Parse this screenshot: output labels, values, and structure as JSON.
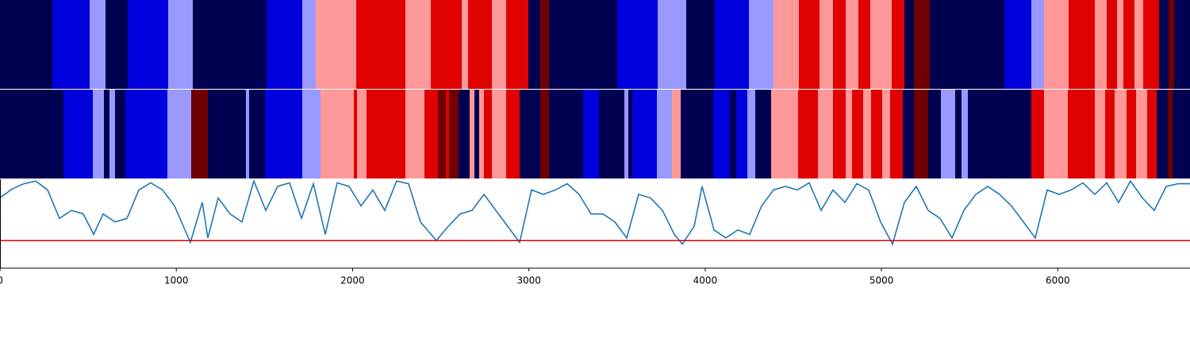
{
  "chart_data": [
    {
      "type": "strip",
      "xlim": [
        0,
        6750
      ],
      "segments": [
        {
          "start": 0,
          "end": 297,
          "color": "#000050"
        },
        {
          "start": 297,
          "end": 508,
          "color": "#0000dd"
        },
        {
          "start": 508,
          "end": 598,
          "color": "#9999ff"
        },
        {
          "start": 598,
          "end": 724,
          "color": "#000050"
        },
        {
          "start": 724,
          "end": 954,
          "color": "#0000dd"
        },
        {
          "start": 954,
          "end": 1093,
          "color": "#9999ff"
        },
        {
          "start": 1093,
          "end": 1512,
          "color": "#000050"
        },
        {
          "start": 1512,
          "end": 1714,
          "color": "#0000dd"
        },
        {
          "start": 1714,
          "end": 1791,
          "color": "#9999ff"
        },
        {
          "start": 1791,
          "end": 2020,
          "color": "#ff9999"
        },
        {
          "start": 2020,
          "end": 2300,
          "color": "#e00000"
        },
        {
          "start": 2300,
          "end": 2443,
          "color": "#ff9999"
        },
        {
          "start": 2443,
          "end": 2619,
          "color": "#e00000"
        },
        {
          "start": 2619,
          "end": 2655,
          "color": "#ff9999"
        },
        {
          "start": 2655,
          "end": 2790,
          "color": "#e00000"
        },
        {
          "start": 2790,
          "end": 2871,
          "color": "#ff9999"
        },
        {
          "start": 2871,
          "end": 2997,
          "color": "#e00000"
        },
        {
          "start": 2997,
          "end": 3064,
          "color": "#000050"
        },
        {
          "start": 3064,
          "end": 3114,
          "color": "#700000"
        },
        {
          "start": 3114,
          "end": 3501,
          "color": "#000050"
        },
        {
          "start": 3501,
          "end": 3730,
          "color": "#0000dd"
        },
        {
          "start": 3730,
          "end": 3892,
          "color": "#9999ff"
        },
        {
          "start": 3892,
          "end": 4054,
          "color": "#000050"
        },
        {
          "start": 4054,
          "end": 4248,
          "color": "#0000dd"
        },
        {
          "start": 4248,
          "end": 4387,
          "color": "#9999ff"
        },
        {
          "start": 4387,
          "end": 4531,
          "color": "#ff9999"
        },
        {
          "start": 4531,
          "end": 4648,
          "color": "#e00000"
        },
        {
          "start": 4648,
          "end": 4725,
          "color": "#ff9999"
        },
        {
          "start": 4725,
          "end": 4797,
          "color": "#e00000"
        },
        {
          "start": 4797,
          "end": 4869,
          "color": "#ff9999"
        },
        {
          "start": 4869,
          "end": 4936,
          "color": "#e00000"
        },
        {
          "start": 4936,
          "end": 5058,
          "color": "#ff9999"
        },
        {
          "start": 5058,
          "end": 5130,
          "color": "#e00000"
        },
        {
          "start": 5130,
          "end": 5184,
          "color": "#000050"
        },
        {
          "start": 5184,
          "end": 5274,
          "color": "#700000"
        },
        {
          "start": 5274,
          "end": 5697,
          "color": "#000050"
        },
        {
          "start": 5697,
          "end": 5850,
          "color": "#0000dd"
        },
        {
          "start": 5850,
          "end": 5922,
          "color": "#9999ff"
        },
        {
          "start": 5922,
          "end": 6061,
          "color": "#ff9999"
        },
        {
          "start": 6061,
          "end": 6210,
          "color": "#e00000"
        },
        {
          "start": 6210,
          "end": 6277,
          "color": "#ff9999"
        },
        {
          "start": 6277,
          "end": 6336,
          "color": "#e00000"
        },
        {
          "start": 6336,
          "end": 6372,
          "color": "#ff9999"
        },
        {
          "start": 6372,
          "end": 6435,
          "color": "#e00000"
        },
        {
          "start": 6435,
          "end": 6484,
          "color": "#ff9999"
        },
        {
          "start": 6484,
          "end": 6574,
          "color": "#e00000"
        },
        {
          "start": 6574,
          "end": 6628,
          "color": "#000050"
        },
        {
          "start": 6628,
          "end": 6660,
          "color": "#700000"
        },
        {
          "start": 6660,
          "end": 6750,
          "color": "#000050"
        }
      ]
    },
    {
      "type": "strip",
      "xlim": [
        0,
        6750
      ],
      "segments": [
        {
          "start": 0,
          "end": 360,
          "color": "#000050"
        },
        {
          "start": 360,
          "end": 526,
          "color": "#0000dd"
        },
        {
          "start": 526,
          "end": 590,
          "color": "#9999ff"
        },
        {
          "start": 590,
          "end": 621,
          "color": "#000050"
        },
        {
          "start": 621,
          "end": 652,
          "color": "#9999ff"
        },
        {
          "start": 652,
          "end": 711,
          "color": "#000050"
        },
        {
          "start": 711,
          "end": 950,
          "color": "#0000dd"
        },
        {
          "start": 950,
          "end": 1084,
          "color": "#9999ff"
        },
        {
          "start": 1084,
          "end": 1179,
          "color": "#700000"
        },
        {
          "start": 1179,
          "end": 1395,
          "color": "#000050"
        },
        {
          "start": 1395,
          "end": 1413,
          "color": "#9999ff"
        },
        {
          "start": 1413,
          "end": 1503,
          "color": "#000050"
        },
        {
          "start": 1503,
          "end": 1714,
          "color": "#0000dd"
        },
        {
          "start": 1714,
          "end": 1818,
          "color": "#9999ff"
        },
        {
          "start": 1818,
          "end": 2007,
          "color": "#ff9999"
        },
        {
          "start": 2007,
          "end": 2025,
          "color": "#e00000"
        },
        {
          "start": 2025,
          "end": 2079,
          "color": "#ff9999"
        },
        {
          "start": 2079,
          "end": 2300,
          "color": "#e00000"
        },
        {
          "start": 2300,
          "end": 2408,
          "color": "#ff9999"
        },
        {
          "start": 2408,
          "end": 2484,
          "color": "#e00000"
        },
        {
          "start": 2484,
          "end": 2529,
          "color": "#700000"
        },
        {
          "start": 2529,
          "end": 2547,
          "color": "#e00000"
        },
        {
          "start": 2547,
          "end": 2601,
          "color": "#700000"
        },
        {
          "start": 2601,
          "end": 2664,
          "color": "#000050"
        },
        {
          "start": 2664,
          "end": 2691,
          "color": "#ff9999"
        },
        {
          "start": 2691,
          "end": 2718,
          "color": "#000050"
        },
        {
          "start": 2718,
          "end": 2745,
          "color": "#ff9999"
        },
        {
          "start": 2745,
          "end": 2790,
          "color": "#e00000"
        },
        {
          "start": 2790,
          "end": 2871,
          "color": "#ff9999"
        },
        {
          "start": 2871,
          "end": 2948,
          "color": "#e00000"
        },
        {
          "start": 2948,
          "end": 3064,
          "color": "#000050"
        },
        {
          "start": 3064,
          "end": 3114,
          "color": "#700000"
        },
        {
          "start": 3114,
          "end": 3308,
          "color": "#000050"
        },
        {
          "start": 3308,
          "end": 3398,
          "color": "#0000dd"
        },
        {
          "start": 3398,
          "end": 3542,
          "color": "#000050"
        },
        {
          "start": 3542,
          "end": 3564,
          "color": "#9999ff"
        },
        {
          "start": 3564,
          "end": 3587,
          "color": "#000050"
        },
        {
          "start": 3587,
          "end": 3726,
          "color": "#0000dd"
        },
        {
          "start": 3726,
          "end": 3812,
          "color": "#9999ff"
        },
        {
          "start": 3812,
          "end": 3861,
          "color": "#ff9999"
        },
        {
          "start": 3861,
          "end": 4046,
          "color": "#000050"
        },
        {
          "start": 4046,
          "end": 4140,
          "color": "#0000dd"
        },
        {
          "start": 4140,
          "end": 4176,
          "color": "#000050"
        },
        {
          "start": 4176,
          "end": 4239,
          "color": "#0000dd"
        },
        {
          "start": 4239,
          "end": 4284,
          "color": "#9999ff"
        },
        {
          "start": 4284,
          "end": 4374,
          "color": "#000050"
        },
        {
          "start": 4374,
          "end": 4527,
          "color": "#ff9999"
        },
        {
          "start": 4527,
          "end": 4640,
          "color": "#e00000"
        },
        {
          "start": 4640,
          "end": 4725,
          "color": "#ff9999"
        },
        {
          "start": 4725,
          "end": 4797,
          "color": "#e00000"
        },
        {
          "start": 4797,
          "end": 4833,
          "color": "#ff9999"
        },
        {
          "start": 4833,
          "end": 4896,
          "color": "#e00000"
        },
        {
          "start": 4896,
          "end": 4941,
          "color": "#ff9999"
        },
        {
          "start": 4941,
          "end": 5004,
          "color": "#e00000"
        },
        {
          "start": 5004,
          "end": 5049,
          "color": "#ff9999"
        },
        {
          "start": 5049,
          "end": 5121,
          "color": "#e00000"
        },
        {
          "start": 5121,
          "end": 5184,
          "color": "#000050"
        },
        {
          "start": 5184,
          "end": 5265,
          "color": "#700000"
        },
        {
          "start": 5265,
          "end": 5337,
          "color": "#000050"
        },
        {
          "start": 5337,
          "end": 5418,
          "color": "#9999ff"
        },
        {
          "start": 5418,
          "end": 5454,
          "color": "#000050"
        },
        {
          "start": 5454,
          "end": 5490,
          "color": "#9999ff"
        },
        {
          "start": 5490,
          "end": 5850,
          "color": "#000050"
        },
        {
          "start": 5850,
          "end": 5922,
          "color": "#e00000"
        },
        {
          "start": 5922,
          "end": 6057,
          "color": "#ff9999"
        },
        {
          "start": 6057,
          "end": 6210,
          "color": "#e00000"
        },
        {
          "start": 6210,
          "end": 6268,
          "color": "#ff9999"
        },
        {
          "start": 6268,
          "end": 6322,
          "color": "#e00000"
        },
        {
          "start": 6322,
          "end": 6390,
          "color": "#ff9999"
        },
        {
          "start": 6390,
          "end": 6444,
          "color": "#e00000"
        },
        {
          "start": 6444,
          "end": 6507,
          "color": "#ff9999"
        },
        {
          "start": 6507,
          "end": 6561,
          "color": "#e00000"
        },
        {
          "start": 6561,
          "end": 6624,
          "color": "#000050"
        },
        {
          "start": 6624,
          "end": 6651,
          "color": "#700000"
        },
        {
          "start": 6651,
          "end": 6750,
          "color": "#000050"
        }
      ]
    },
    {
      "type": "line",
      "xlim": [
        0,
        6750
      ],
      "ylim": [
        0,
        1
      ],
      "xticks": [
        0,
        1000,
        2000,
        3000,
        4000,
        5000,
        6000
      ],
      "hlines": [
        {
          "value": 0.31,
          "color": "#e00000"
        }
      ],
      "x": [
        0,
        67.5,
        135,
        202.5,
        270,
        337.5,
        405,
        472.5,
        531,
        585,
        652.5,
        720,
        787.5,
        855,
        922.5,
        990,
        1080,
        1147.5,
        1179,
        1237.5,
        1305,
        1372.5,
        1440,
        1507.5,
        1575,
        1642.5,
        1710,
        1777.5,
        1845,
        1912.5,
        1980,
        2047.5,
        2115,
        2182.5,
        2250,
        2317.5,
        2385,
        2475,
        2542.5,
        2610,
        2677.5,
        2745,
        2812.5,
        2880,
        2947.5,
        3015,
        3082.5,
        3150,
        3217.5,
        3285,
        3352.5,
        3420,
        3487.5,
        3555,
        3622.5,
        3690,
        3757.5,
        3825,
        3870,
        3937.5,
        3982.5,
        4050,
        4117.5,
        4185,
        4252.5,
        4320,
        4387.5,
        4455,
        4522.5,
        4590,
        4657.5,
        4725,
        4792.5,
        4860,
        4927.5,
        4995,
        5062.5,
        5130,
        5197.5,
        5265,
        5332.5,
        5400,
        5467.5,
        5535,
        5602.5,
        5670,
        5737.5,
        5805,
        5872.5,
        5940,
        6007.5,
        6075,
        6142.5,
        6210,
        6277.5,
        6345,
        6412.5,
        6480,
        6547.5,
        6615,
        6682.5,
        6750
      ],
      "series": [
        {
          "color": "#1f77b4",
          "values": [
            0.79,
            0.89,
            0.95,
            0.98,
            0.88,
            0.56,
            0.65,
            0.61,
            0.38,
            0.61,
            0.52,
            0.56,
            0.88,
            0.96,
            0.88,
            0.7,
            0.29,
            0.74,
            0.34,
            0.79,
            0.61,
            0.52,
            0.98,
            0.65,
            0.92,
            0.96,
            0.56,
            0.95,
            0.38,
            0.96,
            0.92,
            0.7,
            0.88,
            0.65,
            0.98,
            0.95,
            0.52,
            0.31,
            0.47,
            0.61,
            0.65,
            0.83,
            0.65,
            0.47,
            0.29,
            0.88,
            0.83,
            0.88,
            0.95,
            0.83,
            0.61,
            0.61,
            0.52,
            0.34,
            0.83,
            0.79,
            0.65,
            0.38,
            0.27,
            0.47,
            0.92,
            0.43,
            0.34,
            0.43,
            0.38,
            0.7,
            0.88,
            0.92,
            0.88,
            0.96,
            0.65,
            0.88,
            0.74,
            0.95,
            0.88,
            0.52,
            0.27,
            0.74,
            0.92,
            0.65,
            0.56,
            0.34,
            0.65,
            0.83,
            0.92,
            0.83,
            0.7,
            0.52,
            0.34,
            0.88,
            0.83,
            0.88,
            0.96,
            0.83,
            0.96,
            0.74,
            0.98,
            0.79,
            0.65,
            0.92,
            0.95,
            0.95
          ]
        }
      ]
    }
  ]
}
